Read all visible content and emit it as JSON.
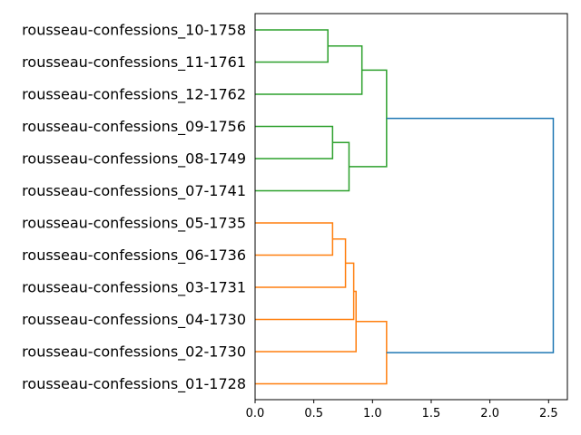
{
  "chart_data": {
    "type": "dendrogram",
    "orientation": "left",
    "leaves": [
      "rousseau-confessions_10-1758",
      "rousseau-confessions_11-1761",
      "rousseau-confessions_12-1762",
      "rousseau-confessions_09-1756",
      "rousseau-confessions_08-1749",
      "rousseau-confessions_07-1741",
      "rousseau-confessions_05-1735",
      "rousseau-confessions_06-1736",
      "rousseau-confessions_03-1731",
      "rousseau-confessions_04-1730",
      "rousseau-confessions_02-1730",
      "rousseau-confessions_01-1728"
    ],
    "merges": [
      {
        "id": "m1",
        "children": [
          "rousseau-confessions_10-1758",
          "rousseau-confessions_11-1761"
        ],
        "height": 0.62,
        "cluster": "green"
      },
      {
        "id": "m2",
        "children": [
          "m1",
          "rousseau-confessions_12-1762"
        ],
        "height": 0.91,
        "cluster": "green"
      },
      {
        "id": "m3",
        "children": [
          "rousseau-confessions_09-1756",
          "rousseau-confessions_08-1749"
        ],
        "height": 0.66,
        "cluster": "green"
      },
      {
        "id": "m4",
        "children": [
          "m3",
          "rousseau-confessions_07-1741"
        ],
        "height": 0.8,
        "cluster": "green"
      },
      {
        "id": "m5",
        "children": [
          "m2",
          "m4"
        ],
        "height": 1.12,
        "cluster": "green"
      },
      {
        "id": "m6",
        "children": [
          "rousseau-confessions_05-1735",
          "rousseau-confessions_06-1736"
        ],
        "height": 0.66,
        "cluster": "orange"
      },
      {
        "id": "m7",
        "children": [
          "m6",
          "rousseau-confessions_03-1731"
        ],
        "height": 0.77,
        "cluster": "orange"
      },
      {
        "id": "m8",
        "children": [
          "m7",
          "rousseau-confessions_04-1730"
        ],
        "height": 0.84,
        "cluster": "orange"
      },
      {
        "id": "m9",
        "children": [
          "m8",
          "rousseau-confessions_02-1730"
        ],
        "height": 0.86,
        "cluster": "orange"
      },
      {
        "id": "m10",
        "children": [
          "m9",
          "rousseau-confessions_01-1728"
        ],
        "height": 1.12,
        "cluster": "orange"
      },
      {
        "id": "m11",
        "children": [
          "m5",
          "m10"
        ],
        "height": 2.54,
        "cluster": "root"
      }
    ],
    "xlim": [
      0.0,
      2.66
    ],
    "xticks": [
      "0.0",
      "0.5",
      "1.0",
      "1.5",
      "2.0",
      "2.5"
    ],
    "grid": false,
    "colors": {
      "green": "#2ca02c",
      "orange": "#ff7f0e",
      "root": "#1f77b4",
      "axis": "#000000"
    }
  }
}
